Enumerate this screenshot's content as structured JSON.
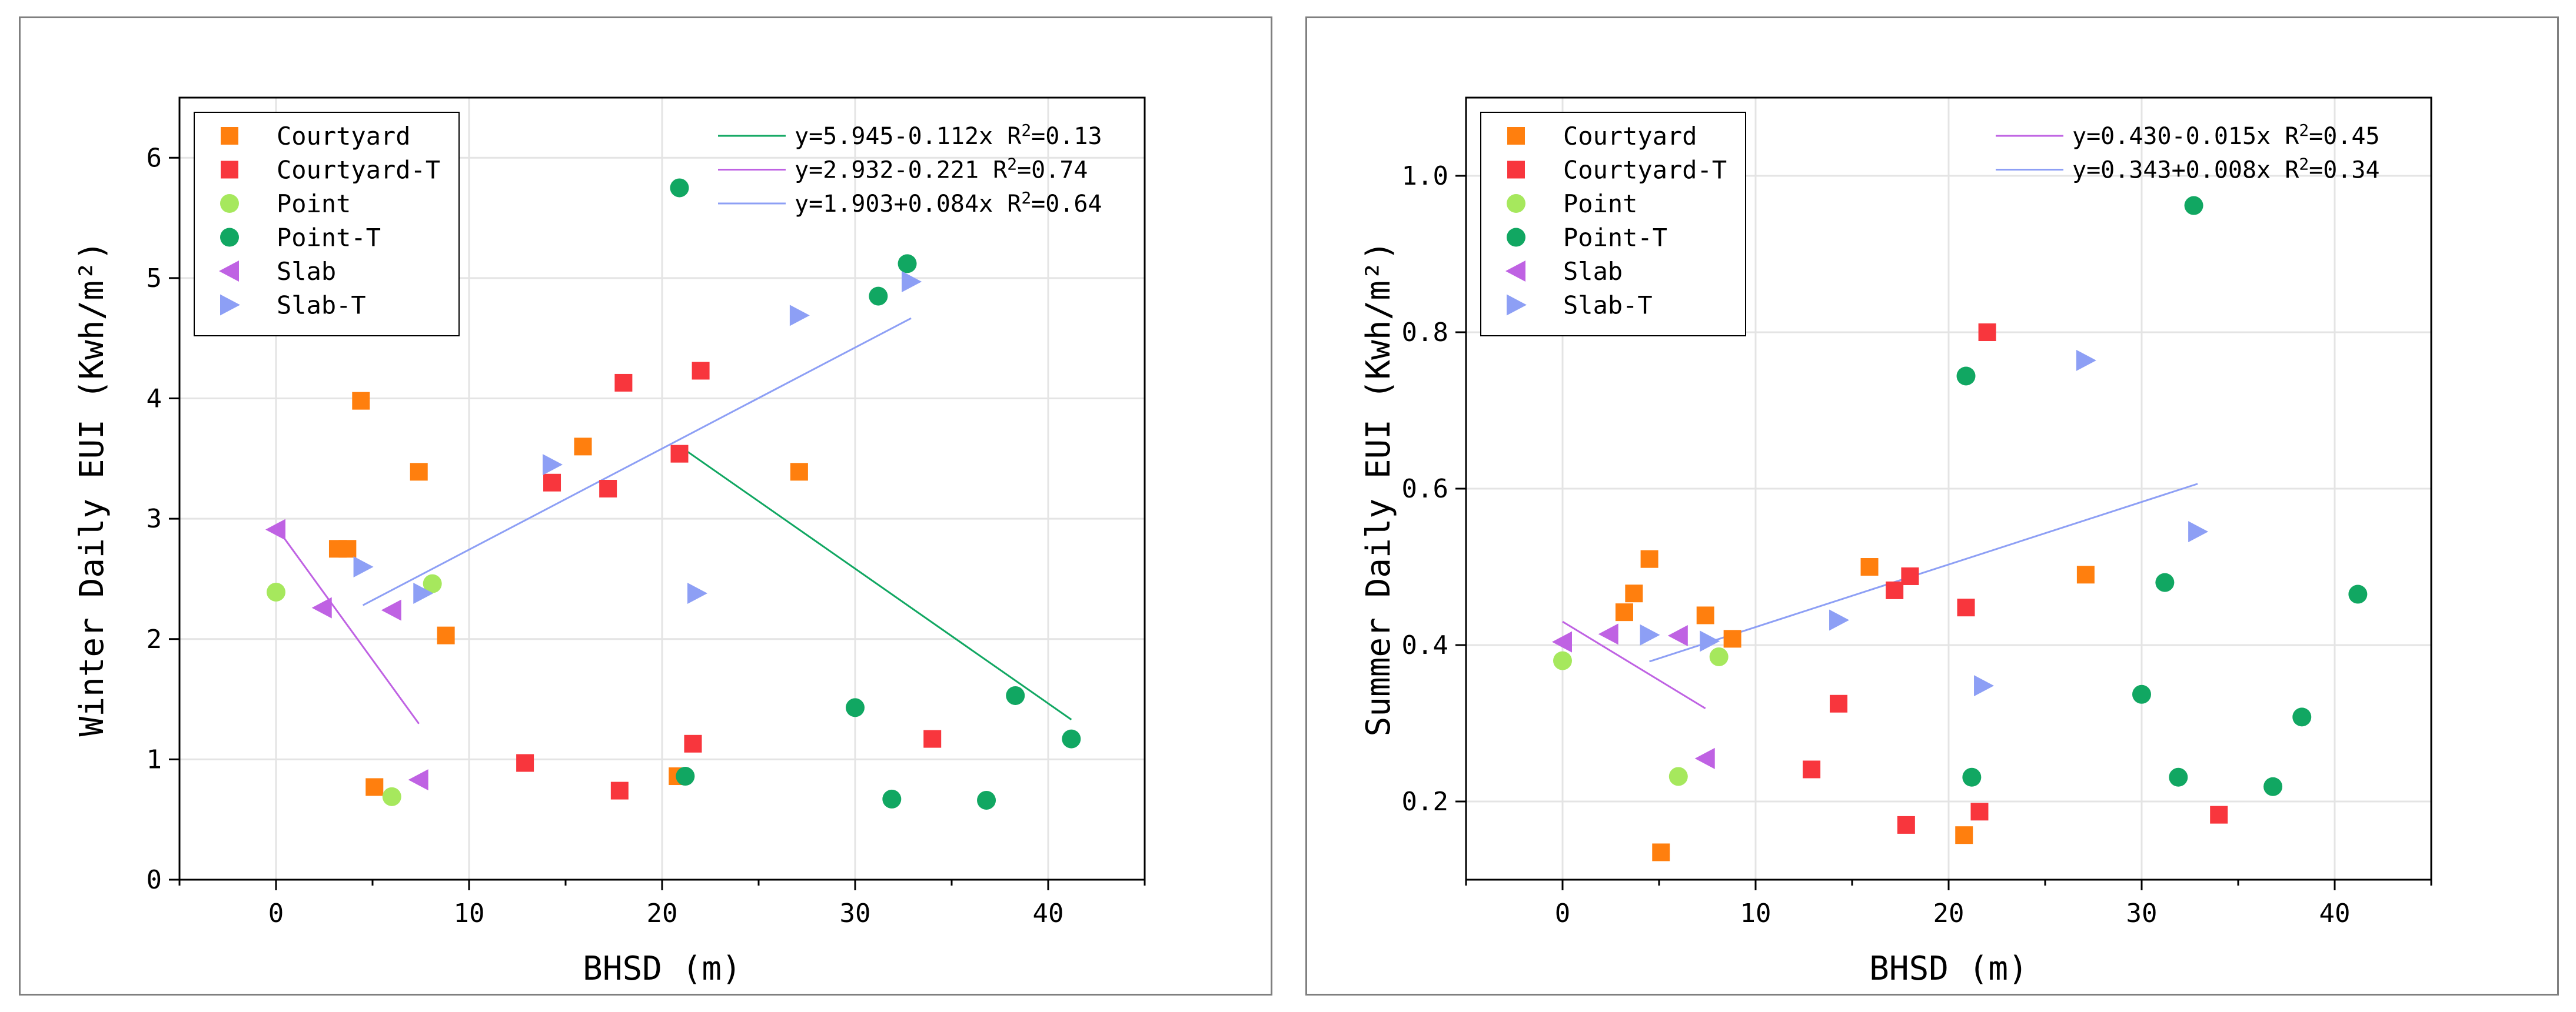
{
  "colors": {
    "Courtyard": "#ff7f0e",
    "Courtyard-T": "#f8363d",
    "Point": "#a6e85d",
    "Point-T": "#11a762",
    "Slab": "#bf62e3",
    "Slab-T": "#8d9ff5"
  },
  "chart_data": [
    {
      "type": "scatter",
      "title": "",
      "xlabel": "BHSD (m)",
      "ylabel": "Winter Daily EUI (Kwh/m²)",
      "xlim": [
        -5,
        45
      ],
      "ylim": [
        0,
        6.5
      ],
      "xticks": [
        "0",
        "10",
        "20",
        "30",
        "40"
      ],
      "yticks": [
        "0",
        "1",
        "2",
        "3",
        "4",
        "5",
        "6"
      ],
      "grid": true,
      "legend_position": "top-left",
      "series": [
        {
          "name": "Courtyard",
          "marker": "square",
          "points": [
            [
              3.2,
              2.75
            ],
            [
              3.7,
              2.75
            ],
            [
              4.4,
              3.98
            ],
            [
              5.1,
              0.77
            ],
            [
              7.4,
              3.39
            ],
            [
              8.8,
              2.03
            ],
            [
              15.9,
              3.6
            ],
            [
              20.8,
              0.86
            ],
            [
              27.1,
              3.39
            ]
          ]
        },
        {
          "name": "Courtyard-T",
          "marker": "square",
          "points": [
            [
              12.9,
              0.97
            ],
            [
              14.3,
              3.3
            ],
            [
              17.2,
              3.25
            ],
            [
              17.8,
              0.74
            ],
            [
              18.0,
              4.13
            ],
            [
              20.9,
              3.54
            ],
            [
              21.6,
              1.13
            ],
            [
              22.0,
              4.23
            ],
            [
              34.0,
              1.17
            ]
          ]
        },
        {
          "name": "Point",
          "marker": "circle",
          "points": [
            [
              0.0,
              2.39
            ],
            [
              6.0,
              0.69
            ],
            [
              8.1,
              2.46
            ]
          ]
        },
        {
          "name": "Point-T",
          "marker": "circle",
          "points": [
            [
              20.9,
              5.75
            ],
            [
              21.2,
              0.86
            ],
            [
              30.0,
              1.43
            ],
            [
              31.2,
              4.85
            ],
            [
              31.9,
              0.67
            ],
            [
              32.7,
              5.12
            ],
            [
              36.8,
              0.66
            ],
            [
              38.3,
              1.53
            ],
            [
              41.2,
              1.17
            ]
          ]
        },
        {
          "name": "Slab",
          "marker": "triangle-left",
          "points": [
            [
              0.0,
              2.91
            ],
            [
              2.4,
              2.26
            ],
            [
              6.0,
              2.24
            ],
            [
              7.4,
              0.83
            ]
          ]
        },
        {
          "name": "Slab-T",
          "marker": "triangle-right",
          "points": [
            [
              4.5,
              2.6
            ],
            [
              7.6,
              2.38
            ],
            [
              14.3,
              3.45
            ],
            [
              21.8,
              2.38
            ],
            [
              27.1,
              4.69
            ],
            [
              32.9,
              4.97
            ]
          ]
        }
      ],
      "fits": [
        {
          "label": "y=5.945-0.112x R²=0.13",
          "series": "Point-T",
          "x": [
            20.9,
            41.2
          ],
          "color": "#11a762"
        },
        {
          "label": "y=2.932-0.221 R²=0.74",
          "series": "Slab",
          "x": [
            0.0,
            7.4
          ],
          "color": "#bf62e3"
        },
        {
          "label": "y=1.903+0.084x R²=0.64",
          "series": "Slab-T",
          "x": [
            4.5,
            32.9
          ],
          "color": "#8d9ff5"
        }
      ]
    },
    {
      "type": "scatter",
      "title": "",
      "xlabel": "BHSD (m)",
      "ylabel": "Summer Daily EUI (Kwh/m²)",
      "xlim": [
        -5,
        45
      ],
      "ylim": [
        0.1,
        1.1
      ],
      "xticks": [
        "0",
        "10",
        "20",
        "30",
        "40"
      ],
      "yticks": [
        "0.2",
        "0.4",
        "0.6",
        "0.8",
        "1.0"
      ],
      "grid": true,
      "legend_position": "top-left",
      "series": [
        {
          "name": "Courtyard",
          "marker": "square",
          "points": [
            [
              3.2,
              0.442
            ],
            [
              3.7,
              0.466
            ],
            [
              4.5,
              0.51
            ],
            [
              5.1,
              0.135
            ],
            [
              7.4,
              0.438
            ],
            [
              8.8,
              0.408
            ],
            [
              15.9,
              0.5
            ],
            [
              20.8,
              0.157
            ],
            [
              27.1,
              0.49
            ]
          ]
        },
        {
          "name": "Courtyard-T",
          "marker": "square",
          "points": [
            [
              12.9,
              0.241
            ],
            [
              14.3,
              0.325
            ],
            [
              17.2,
              0.47
            ],
            [
              17.8,
              0.17
            ],
            [
              18.0,
              0.488
            ],
            [
              20.9,
              0.448
            ],
            [
              21.6,
              0.187
            ],
            [
              22.0,
              0.8
            ],
            [
              34.0,
              0.183
            ]
          ]
        },
        {
          "name": "Point",
          "marker": "circle",
          "points": [
            [
              0.0,
              0.38
            ],
            [
              6.0,
              0.232
            ],
            [
              8.1,
              0.385
            ]
          ]
        },
        {
          "name": "Point-T",
          "marker": "circle",
          "points": [
            [
              20.9,
              0.744
            ],
            [
              21.2,
              0.231
            ],
            [
              30.0,
              0.337
            ],
            [
              31.2,
              0.48
            ],
            [
              31.9,
              0.231
            ],
            [
              32.7,
              0.962
            ],
            [
              36.8,
              0.219
            ],
            [
              38.3,
              0.308
            ],
            [
              41.2,
              0.465
            ]
          ]
        },
        {
          "name": "Slab",
          "marker": "triangle-left",
          "points": [
            [
              0.0,
              0.404
            ],
            [
              2.4,
              0.414
            ],
            [
              6.0,
              0.412
            ],
            [
              7.4,
              0.255
            ]
          ]
        },
        {
          "name": "Slab-T",
          "marker": "triangle-right",
          "points": [
            [
              4.5,
              0.413
            ],
            [
              7.6,
              0.405
            ],
            [
              14.3,
              0.432
            ],
            [
              21.8,
              0.348
            ],
            [
              27.1,
              0.764
            ],
            [
              32.9,
              0.545
            ]
          ]
        }
      ],
      "fits": [
        {
          "label": "y=0.430-0.015x R²=0.45",
          "series": "Slab",
          "x": [
            0.0,
            7.4
          ],
          "color": "#bf62e3"
        },
        {
          "label": "y=0.343+0.008x R²=0.34",
          "series": "Slab-T",
          "x": [
            4.5,
            32.9
          ],
          "color": "#8d9ff5"
        }
      ]
    }
  ]
}
